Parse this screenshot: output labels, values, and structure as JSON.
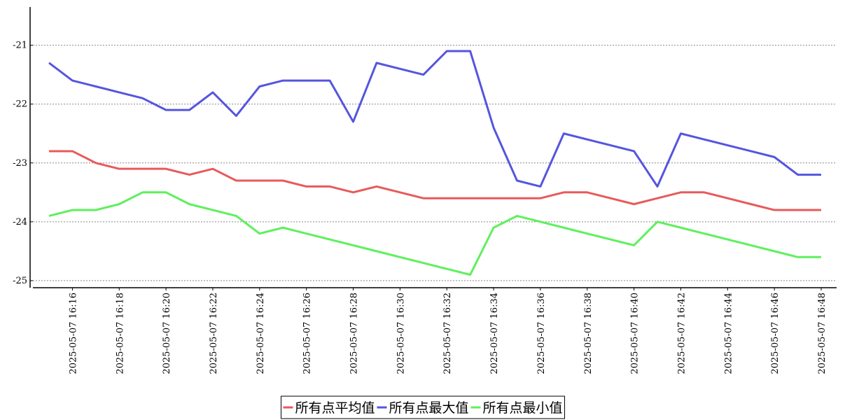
{
  "chart_data": {
    "type": "line",
    "categories": [
      null,
      "2025-05-07 16:16",
      null,
      "2025-05-07 16:18",
      null,
      "2025-05-07 16:20",
      null,
      "2025-05-07 16:22",
      null,
      "2025-05-07 16:24",
      null,
      "2025-05-07 16:26",
      null,
      "2025-05-07 16:28",
      null,
      "2025-05-07 16:30",
      null,
      "2025-05-07 16:32",
      null,
      "2025-05-07 16:34",
      null,
      "2025-05-07 16:36",
      null,
      "2025-05-07 16:38",
      null,
      "2025-05-07 16:40",
      null,
      "2025-05-07 16:42",
      null,
      "2025-05-07 16:44",
      null,
      "2025-05-07 16:46",
      null,
      "2025-05-07 16:48"
    ],
    "series": [
      {
        "name": "所有点平均值",
        "color": "#e85a5a",
        "values": [
          -22.8,
          -22.8,
          -23.0,
          -23.1,
          -23.1,
          -23.1,
          -23.2,
          -23.1,
          -23.3,
          -23.3,
          -23.3,
          -23.4,
          -23.4,
          -23.5,
          -23.4,
          -23.5,
          -23.6,
          -23.6,
          -23.6,
          -23.6,
          -23.6,
          -23.6,
          -23.5,
          -23.5,
          -23.6,
          -23.7,
          -23.6,
          -23.5,
          -23.5,
          -23.6,
          -23.7,
          -23.8,
          -23.8,
          -23.8
        ]
      },
      {
        "name": "所有点最大值",
        "color": "#5555e0",
        "values": [
          -21.3,
          -21.6,
          -21.7,
          -21.8,
          -21.9,
          -22.1,
          -22.1,
          -21.8,
          -22.2,
          -21.7,
          -21.6,
          -21.6,
          -21.6,
          -22.3,
          -21.3,
          -21.4,
          -21.5,
          -21.1,
          -21.1,
          -22.4,
          -23.3,
          -23.4,
          -22.5,
          -22.6,
          -22.7,
          -22.8,
          -23.4,
          -22.5,
          -22.6,
          -22.7,
          -22.8,
          -22.9,
          -23.2,
          -23.2
        ]
      },
      {
        "name": "所有点最小值",
        "color": "#5ef05e",
        "values": [
          -23.9,
          -23.8,
          -23.8,
          -23.7,
          -23.5,
          -23.5,
          -23.7,
          -23.8,
          -23.9,
          -24.2,
          -24.1,
          -24.2,
          -24.3,
          -24.4,
          -24.5,
          -24.6,
          -24.7,
          -24.8,
          -24.9,
          -24.1,
          -23.9,
          -24.0,
          -24.1,
          -24.2,
          -24.3,
          -24.4,
          -24.0,
          -24.1,
          -24.2,
          -24.3,
          -24.4,
          -24.5,
          -24.6,
          -24.6
        ]
      }
    ],
    "ylim": [
      -25.12,
      -20.35
    ],
    "yticks": [
      -25,
      -24,
      -23,
      -22,
      -21
    ],
    "grid": true,
    "legend": "bottom"
  }
}
